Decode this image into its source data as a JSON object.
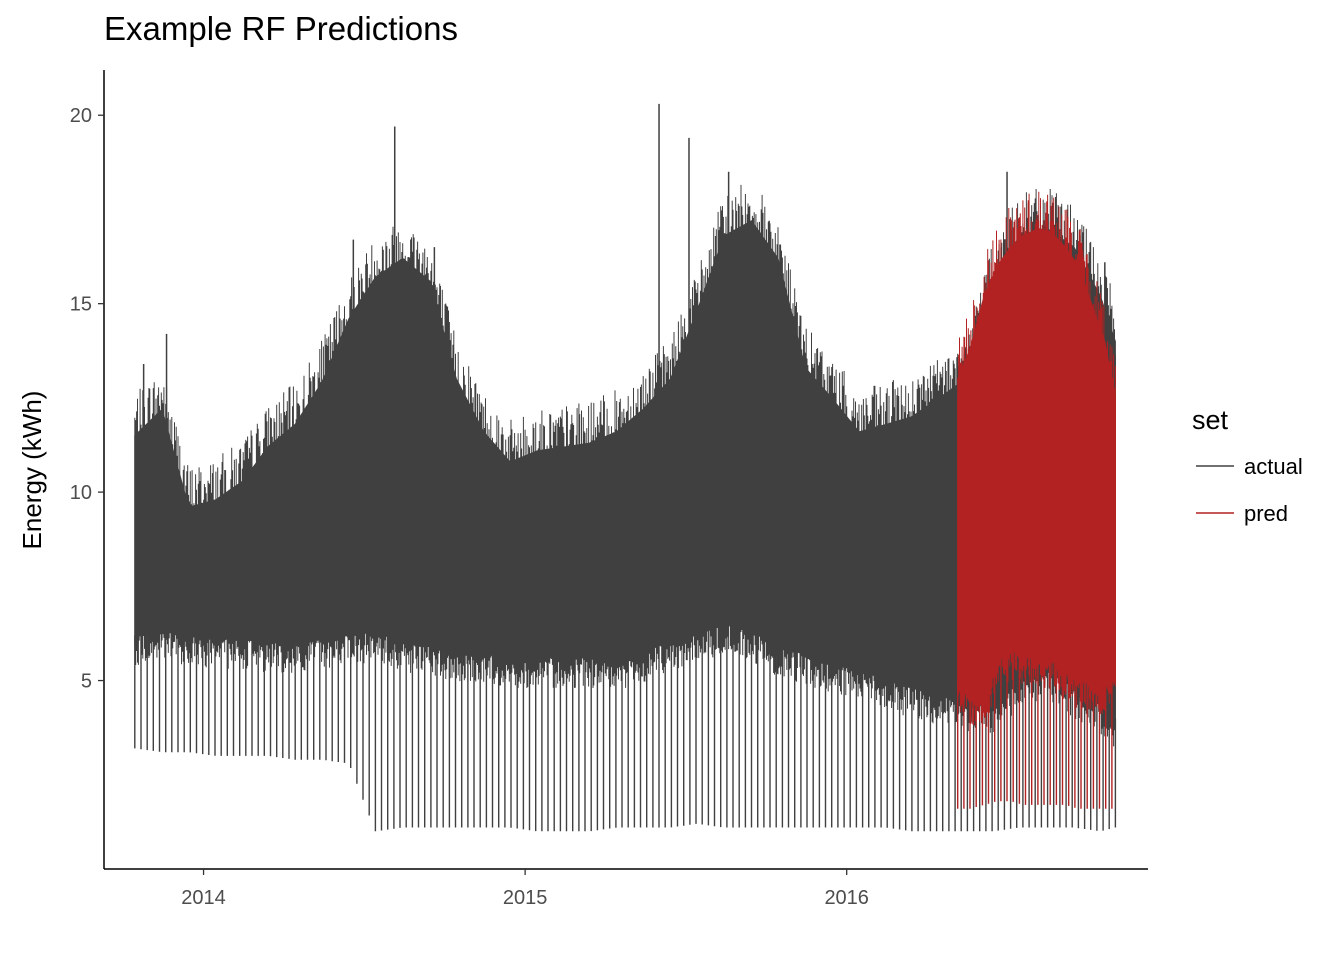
{
  "chart_data": {
    "type": "line",
    "title": "Example RF Predictions",
    "xlabel": "",
    "ylabel": "Energy (kWh)",
    "x_ticks": [
      "2014",
      "2015",
      "2016"
    ],
    "y_ticks": [
      "5",
      "10",
      "15",
      "20"
    ],
    "xlim": [
      "2013-09-10",
      "2016-12-08"
    ],
    "ylim": [
      0,
      21.2
    ],
    "grid": false,
    "legend": {
      "title": "set",
      "position": "right",
      "entries": [
        "actual",
        "pred"
      ]
    },
    "series": [
      {
        "name": "actual",
        "color": "#404040",
        "x": [
          "2013-10-15",
          "2013-11-15",
          "2013-12-15",
          "2014-01-15",
          "2014-02-15",
          "2014-03-15",
          "2014-04-15",
          "2014-05-15",
          "2014-06-15",
          "2014-07-15",
          "2014-08-15",
          "2014-09-15",
          "2014-10-15",
          "2014-11-15",
          "2014-12-15",
          "2015-01-15",
          "2015-02-15",
          "2015-03-15",
          "2015-04-15",
          "2015-05-15",
          "2015-06-15",
          "2015-07-15",
          "2015-08-15",
          "2015-09-15",
          "2015-10-15",
          "2015-11-15",
          "2015-12-15",
          "2016-01-15",
          "2016-02-15",
          "2016-03-15",
          "2016-04-15",
          "2016-05-15",
          "2016-06-15",
          "2016-07-15",
          "2016-08-15",
          "2016-09-15",
          "2016-10-15",
          "2016-11-01"
        ],
        "upper": [
          11.5,
          12.2,
          9.6,
          9.8,
          10.3,
          11.2,
          11.8,
          12.9,
          14.6,
          15.7,
          16.2,
          15.6,
          13.0,
          11.6,
          10.8,
          11.1,
          11.2,
          11.3,
          11.6,
          12.2,
          13.0,
          14.8,
          16.8,
          17.2,
          16.2,
          13.3,
          12.5,
          11.6,
          11.8,
          12.0,
          12.5,
          13.0,
          15.5,
          16.8,
          17.0,
          16.5,
          15.2,
          14.0
        ],
        "lower": [
          6.2,
          6.3,
          6.2,
          6.1,
          6.1,
          6.0,
          6.0,
          6.1,
          6.2,
          6.3,
          6.0,
          5.9,
          5.7,
          5.7,
          5.6,
          5.6,
          5.6,
          5.6,
          5.5,
          5.7,
          6.1,
          6.2,
          6.5,
          6.3,
          5.9,
          5.7,
          5.4,
          5.3,
          5.0,
          4.8,
          4.6,
          4.4,
          4.3,
          5.0,
          5.3,
          4.8,
          4.4,
          4.0
        ],
        "min": [
          3.2,
          3.1,
          3.1,
          3.0,
          3.0,
          3.0,
          2.9,
          2.9,
          2.8,
          1.0,
          1.1,
          1.1,
          1.1,
          1.1,
          1.1,
          1.0,
          1.0,
          1.0,
          1.1,
          1.1,
          1.1,
          1.2,
          1.1,
          1.1,
          1.1,
          1.1,
          1.1,
          1.1,
          1.1,
          1.0,
          1.0,
          1.0,
          1.0,
          1.1,
          1.1,
          1.1,
          1.0,
          1.1
        ],
        "spikes": [
          {
            "x": "2013-10-25",
            "y": 13.4
          },
          {
            "x": "2013-11-20",
            "y": 14.2
          },
          {
            "x": "2014-06-20",
            "y": 16.7
          },
          {
            "x": "2014-08-06",
            "y": 19.7
          },
          {
            "x": "2014-09-20",
            "y": 16.5
          },
          {
            "x": "2015-06-02",
            "y": 20.3
          },
          {
            "x": "2015-07-06",
            "y": 19.4
          },
          {
            "x": "2015-08-20",
            "y": 18.5
          },
          {
            "x": "2015-10-05",
            "y": 17.2
          },
          {
            "x": "2016-07-01",
            "y": 18.5
          },
          {
            "x": "2016-10-20",
            "y": 16.1
          }
        ]
      },
      {
        "name": "pred",
        "color": "#B22222",
        "x": [
          "2016-05-06",
          "2016-05-20",
          "2016-06-05",
          "2016-06-20",
          "2016-07-05",
          "2016-07-20",
          "2016-08-05",
          "2016-08-20",
          "2016-09-05",
          "2016-09-20",
          "2016-10-05",
          "2016-10-20",
          "2016-11-01"
        ],
        "upper": [
          13.0,
          13.8,
          15.2,
          16.0,
          16.5,
          16.8,
          17.0,
          16.9,
          16.5,
          16.0,
          15.0,
          14.0,
          12.5
        ],
        "lower": [
          5.0,
          4.6,
          4.3,
          5.6,
          5.8,
          5.7,
          5.6,
          5.6,
          5.2,
          5.0,
          4.9,
          4.9,
          5.0
        ],
        "min": [
          1.6,
          1.6,
          1.7,
          1.8,
          1.8,
          1.7,
          1.7,
          1.7,
          1.7,
          1.6,
          1.6,
          1.6,
          1.6
        ]
      }
    ]
  }
}
